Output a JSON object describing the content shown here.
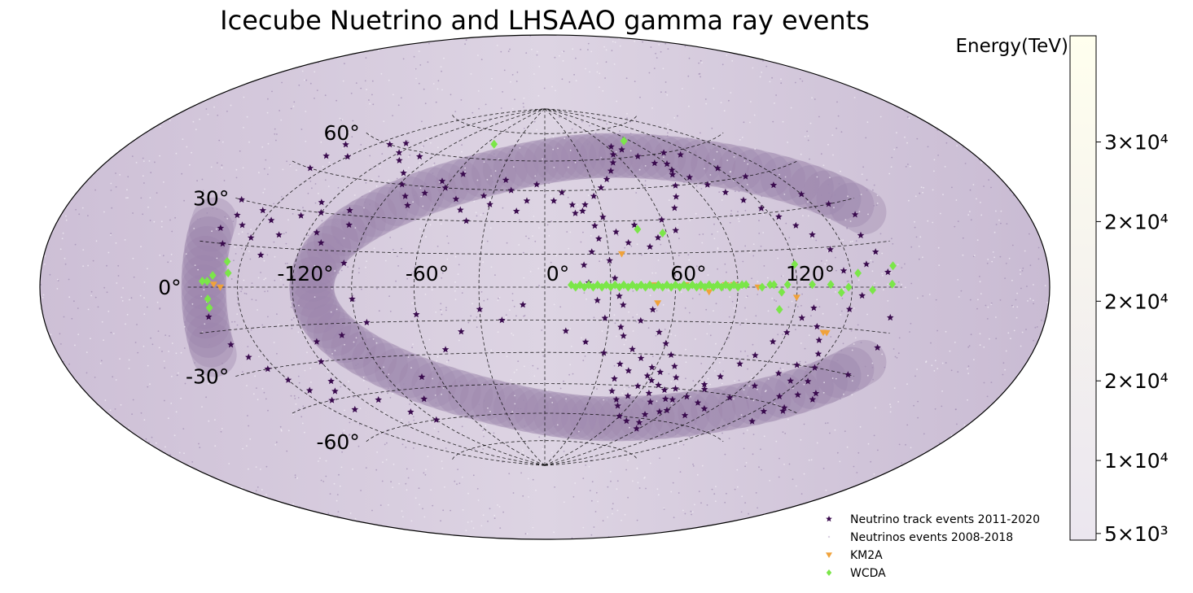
{
  "chart_data": {
    "type": "scatter",
    "projection": "hammer-aitoff",
    "title": "Icecube Nuetrino and LHSAAO gamma ray events",
    "grid": true,
    "x_ticks": [
      "-120°",
      "-60°",
      "0°",
      "60°",
      "120°"
    ],
    "x_tick_values": [
      -120,
      -60,
      0,
      60,
      120
    ],
    "y_ticks": [
      "60°",
      "30°",
      "0°",
      "-30°",
      "-60°"
    ],
    "y_tick_values": [
      60,
      30,
      0,
      -30,
      -60
    ],
    "colorbar": {
      "label": "Energy(TeV)",
      "tick_labels": [
        "3×10⁴",
        "2×10⁴",
        "2×10⁴",
        "2×10⁴",
        "1×10⁴",
        "5×10³"
      ],
      "tick_values": [
        30000,
        24000,
        18000,
        12000,
        6000,
        500
      ],
      "range": [
        0,
        38000
      ],
      "colors": [
        "#ebe6ef",
        "#ffffee"
      ]
    },
    "legend_position": "bottom-right",
    "series": [
      {
        "name": "Neutrino track events 2011-2020",
        "marker": "star",
        "color": "#3a0b4e",
        "points": [
          [
            -170,
            55
          ],
          [
            -165,
            50
          ],
          [
            -160,
            45
          ],
          [
            -150,
            52
          ],
          [
            -140,
            60
          ],
          [
            -130,
            62
          ],
          [
            -120,
            58
          ],
          [
            -110,
            55
          ],
          [
            -100,
            58
          ],
          [
            -95,
            50
          ],
          [
            -88,
            45
          ],
          [
            -80,
            40
          ],
          [
            -75,
            36
          ],
          [
            -70,
            42
          ],
          [
            -65,
            48
          ],
          [
            -60,
            45
          ],
          [
            -55,
            52
          ],
          [
            -50,
            40
          ],
          [
            -45,
            35
          ],
          [
            -40,
            30
          ],
          [
            -35,
            42
          ],
          [
            -30,
            38
          ],
          [
            -25,
            50
          ],
          [
            -20,
            45
          ],
          [
            -15,
            35
          ],
          [
            -10,
            40
          ],
          [
            -5,
            48
          ],
          [
            5,
            40
          ],
          [
            10,
            44
          ],
          [
            15,
            38
          ],
          [
            20,
            35
          ],
          [
            25,
            28
          ],
          [
            30,
            32
          ],
          [
            35,
            25
          ],
          [
            40,
            20
          ],
          [
            45,
            28
          ],
          [
            50,
            18
          ],
          [
            55,
            22
          ],
          [
            60,
            30
          ],
          [
            65,
            25
          ],
          [
            70,
            35
          ],
          [
            75,
            40
          ],
          [
            80,
            45
          ],
          [
            85,
            50
          ],
          [
            90,
            55
          ],
          [
            100,
            60
          ],
          [
            110,
            58
          ],
          [
            120,
            50
          ],
          [
            130,
            45
          ],
          [
            140,
            40
          ],
          [
            150,
            35
          ],
          [
            160,
            30
          ],
          [
            170,
            25
          ],
          [
            -175,
            30
          ],
          [
            -168,
            25
          ],
          [
            -172,
            20
          ],
          [
            -165,
            15
          ],
          [
            -160,
            22
          ],
          [
            -155,
            28
          ],
          [
            -150,
            18
          ],
          [
            -145,
            25
          ],
          [
            -140,
            12
          ],
          [
            -135,
            20
          ],
          [
            -130,
            28
          ],
          [
            -125,
            34
          ],
          [
            -120,
            30
          ],
          [
            -115,
            22
          ],
          [
            -110,
            18
          ],
          [
            -105,
            32
          ],
          [
            -100,
            26
          ],
          [
            -95,
            10
          ],
          [
            -90,
            -5
          ],
          [
            -85,
            -15
          ],
          [
            -170,
            -10
          ],
          [
            -165,
            -20
          ],
          [
            -160,
            -25
          ],
          [
            -155,
            -30
          ],
          [
            -150,
            -35
          ],
          [
            -145,
            -40
          ],
          [
            -140,
            -45
          ],
          [
            -135,
            -50
          ],
          [
            -130,
            -42
          ],
          [
            -125,
            -38
          ],
          [
            -120,
            -30
          ],
          [
            -115,
            -22
          ],
          [
            -110,
            -48
          ],
          [
            -100,
            -55
          ],
          [
            -90,
            -60
          ],
          [
            -80,
            -50
          ],
          [
            -70,
            -40
          ],
          [
            -30,
            -10
          ],
          [
            -20,
            -15
          ],
          [
            -10,
            -8
          ],
          [
            10,
            -20
          ],
          [
            20,
            -25
          ],
          [
            30,
            -30
          ],
          [
            40,
            -35
          ],
          [
            45,
            -15
          ],
          [
            50,
            -10
          ],
          [
            55,
            -20
          ],
          [
            60,
            -25
          ],
          [
            65,
            -30
          ],
          [
            70,
            -35
          ],
          [
            75,
            -40
          ],
          [
            80,
            -45
          ],
          [
            85,
            -50
          ],
          [
            90,
            -55
          ],
          [
            95,
            -42
          ],
          [
            100,
            -38
          ],
          [
            105,
            -32
          ],
          [
            110,
            -28
          ],
          [
            115,
            -22
          ],
          [
            120,
            -18
          ],
          [
            125,
            -12
          ],
          [
            130,
            -8
          ],
          [
            135,
            -15
          ],
          [
            140,
            -20
          ],
          [
            145,
            -25
          ],
          [
            150,
            -30
          ],
          [
            155,
            -35
          ],
          [
            160,
            -40
          ],
          [
            165,
            -45
          ],
          [
            170,
            -38
          ],
          [
            175,
            -30
          ],
          [
            40,
            -42
          ],
          [
            42,
            -48
          ],
          [
            48,
            -52
          ],
          [
            52,
            -55
          ],
          [
            56,
            -45
          ],
          [
            58,
            -40
          ],
          [
            62,
            -42
          ],
          [
            66,
            -48
          ],
          [
            72,
            -52
          ],
          [
            78,
            -58
          ],
          [
            82,
            -62
          ],
          [
            88,
            -65
          ],
          [
            60,
            -60
          ],
          [
            70,
            -62
          ],
          [
            54,
            -50
          ],
          [
            46,
            -38
          ],
          [
            38,
            -22
          ],
          [
            36,
            -18
          ],
          [
            44,
            -28
          ],
          [
            50,
            -32
          ],
          [
            58,
            -36
          ],
          [
            64,
            -38
          ],
          [
            68,
            -44
          ],
          [
            74,
            -46
          ],
          [
            80,
            -50
          ],
          [
            86,
            -56
          ],
          [
            92,
            -48
          ],
          [
            98,
            -44
          ],
          [
            104,
            -50
          ],
          [
            108,
            -56
          ],
          [
            114,
            -52
          ],
          [
            120,
            -46
          ],
          [
            126,
            -40
          ],
          [
            132,
            -34
          ],
          [
            138,
            -30
          ],
          [
            144,
            -36
          ],
          [
            150,
            -42
          ],
          [
            156,
            -48
          ],
          [
            162,
            -52
          ],
          [
            168,
            -46
          ],
          [
            174,
            -40
          ],
          [
            178,
            -20
          ],
          [
            176,
            -10
          ],
          [
            172,
            5
          ],
          [
            168,
            12
          ],
          [
            164,
            18
          ],
          [
            160,
            8
          ],
          [
            156,
            -3
          ],
          [
            150,
            -8
          ],
          [
            146,
            6
          ],
          [
            142,
            14
          ],
          [
            136,
            20
          ],
          [
            130,
            24
          ],
          [
            124,
            28
          ],
          [
            118,
            32
          ],
          [
            112,
            36
          ],
          [
            106,
            40
          ],
          [
            100,
            44
          ],
          [
            94,
            48
          ],
          [
            88,
            52
          ],
          [
            82,
            56
          ],
          [
            76,
            60
          ],
          [
            70,
            64
          ],
          [
            64,
            66
          ],
          [
            58,
            62
          ],
          [
            52,
            58
          ],
          [
            46,
            54
          ],
          [
            40,
            50
          ],
          [
            34,
            46
          ],
          [
            28,
            42
          ],
          [
            22,
            38
          ],
          [
            16,
            34
          ],
          [
            30,
            12
          ],
          [
            32,
            4
          ],
          [
            34,
            -4
          ],
          [
            36,
            -8
          ],
          [
            28,
            -14
          ],
          [
            24,
            -6
          ],
          [
            20,
            2
          ],
          [
            18,
            10
          ],
          [
            22,
            16
          ],
          [
            26,
            22
          ],
          [
            -60,
            -12
          ],
          [
            -40,
            -20
          ],
          [
            -50,
            -28
          ],
          [
            -100,
            -20
          ]
        ]
      },
      {
        "name": "Neutrinos events 2008-2018",
        "marker": "dot",
        "color": "#d9d0e2",
        "points": []
      },
      {
        "name": "KM2A",
        "marker": "triangle-down",
        "color": "#f0a23a",
        "points": [
          [
            -164,
            1
          ],
          [
            -160,
            0
          ],
          [
            36,
            15
          ],
          [
            50,
            1
          ],
          [
            52,
            -7
          ],
          [
            65,
            1
          ],
          [
            72,
            0
          ],
          [
            76,
            -2
          ],
          [
            84,
            1
          ],
          [
            88,
            1
          ],
          [
            100,
            0
          ],
          [
            120,
            -4
          ],
          [
            140,
            -17
          ],
          [
            142,
            -17
          ]
        ]
      },
      {
        "name": "WCDA",
        "marker": "diamond",
        "color": "#7be649",
        "points": [
          [
            -171,
            2
          ],
          [
            -168,
            2
          ],
          [
            -165,
            4
          ],
          [
            -168,
            -4
          ],
          [
            -168,
            -7
          ],
          [
            -158,
            9
          ],
          [
            -156,
            5
          ],
          [
            -52,
            68
          ],
          [
            46,
            26
          ],
          [
            58,
            24
          ],
          [
            94,
            1
          ],
          [
            102,
            0
          ],
          [
            106,
            1
          ],
          [
            108,
            1
          ],
          [
            112,
            -2
          ],
          [
            112,
            -9
          ],
          [
            115,
            1
          ],
          [
            120,
            9
          ],
          [
            128,
            1
          ],
          [
            138,
            1
          ],
          [
            144,
            -2
          ],
          [
            148,
            0
          ],
          [
            154,
            5
          ],
          [
            162,
            -1
          ],
          [
            174,
            1
          ],
          [
            176,
            7
          ],
          [
            84,
            68
          ],
          [
            12,
            1
          ],
          [
            14,
            0
          ],
          [
            16,
            1
          ],
          [
            18,
            0
          ],
          [
            20,
            1
          ],
          [
            22,
            0
          ],
          [
            24,
            1
          ],
          [
            26,
            0
          ],
          [
            28,
            1
          ],
          [
            30,
            0
          ],
          [
            32,
            1
          ],
          [
            34,
            0
          ],
          [
            36,
            1
          ],
          [
            38,
            0
          ],
          [
            40,
            1
          ],
          [
            42,
            0
          ],
          [
            44,
            1
          ],
          [
            46,
            0
          ],
          [
            48,
            1
          ],
          [
            50,
            0
          ],
          [
            52,
            1
          ],
          [
            54,
            0
          ],
          [
            56,
            1
          ],
          [
            58,
            0
          ],
          [
            60,
            1
          ],
          [
            62,
            0
          ],
          [
            64,
            1
          ],
          [
            66,
            0
          ],
          [
            68,
            1
          ],
          [
            70,
            0
          ],
          [
            72,
            1
          ],
          [
            74,
            0
          ],
          [
            76,
            1
          ],
          [
            78,
            0
          ],
          [
            80,
            1
          ],
          [
            82,
            0
          ],
          [
            84,
            1
          ],
          [
            86,
            0
          ],
          [
            88,
            1
          ],
          [
            90,
            0
          ],
          [
            92,
            1
          ]
        ]
      }
    ]
  }
}
